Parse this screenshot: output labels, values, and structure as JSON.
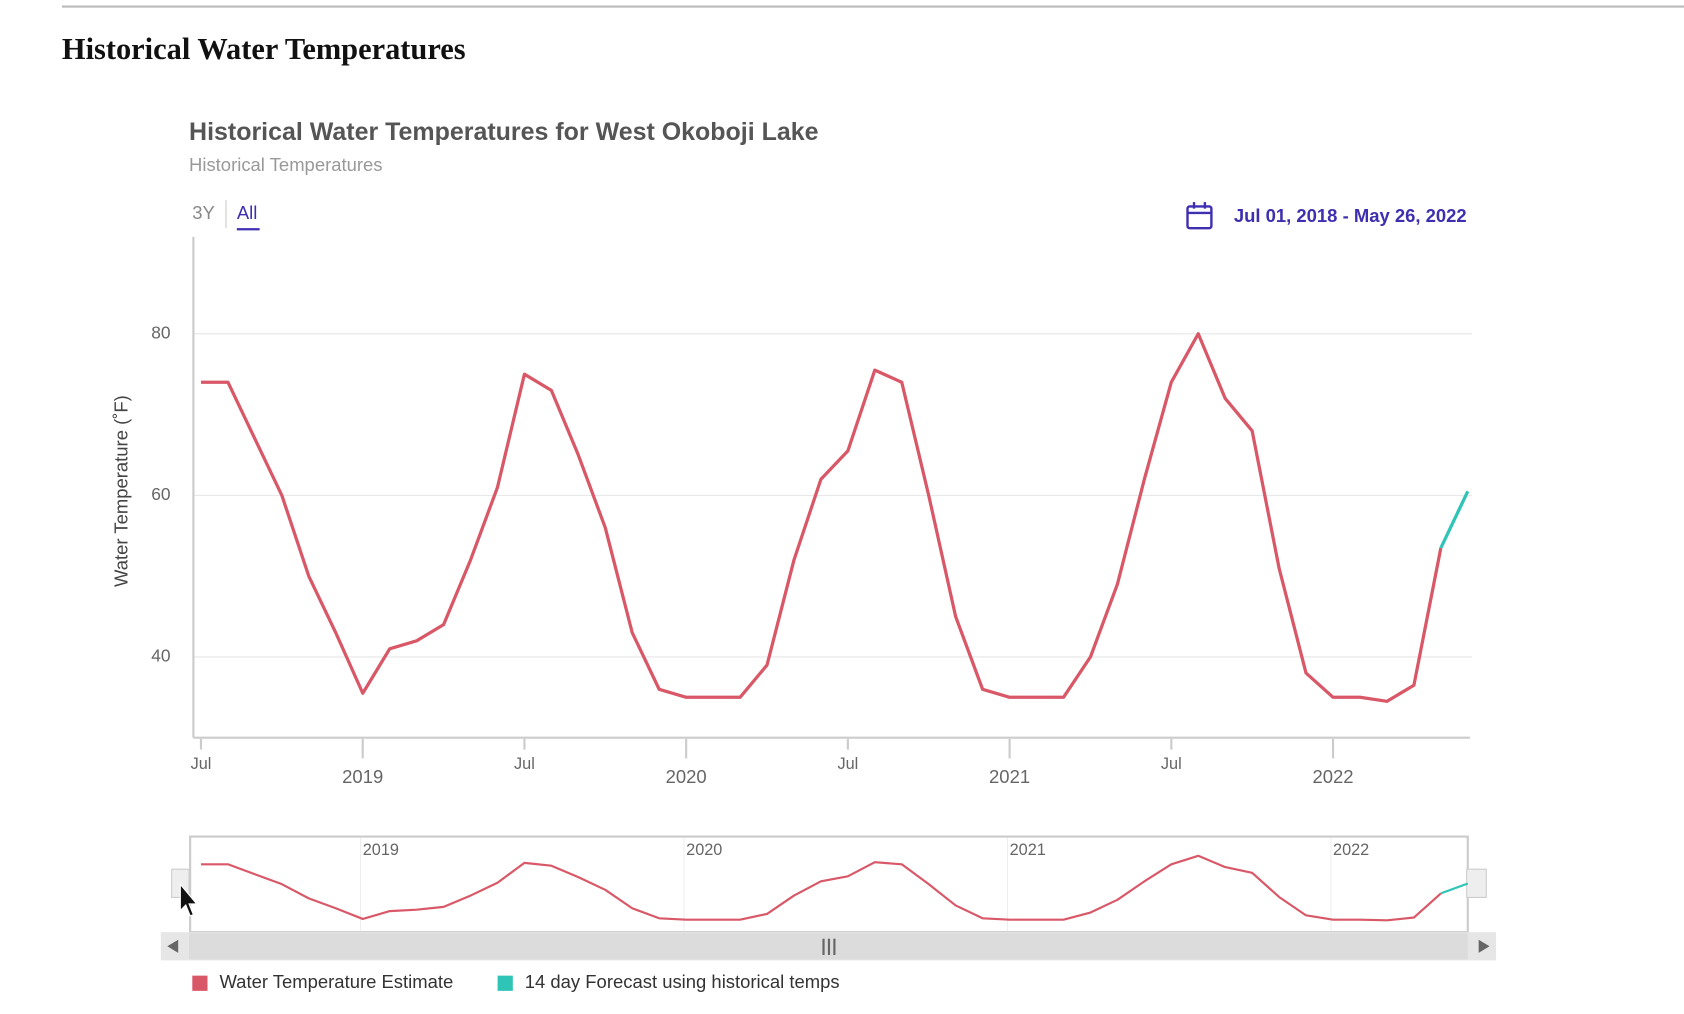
{
  "header": {
    "title": "Historical Water Temperatures"
  },
  "chart_data": {
    "type": "line",
    "title": "Historical Water Temperatures for West Okoboji Lake",
    "subtitle": "Historical Temperatures",
    "range_buttons": [
      "3Y",
      "All"
    ],
    "date_range": "Jul 01, 2018 - May 26, 2022",
    "y_label": "Water Temperature (˚F)",
    "x": [
      "2018-07",
      "2018-08",
      "2018-09",
      "2018-10",
      "2018-11",
      "2018-12",
      "2019-01",
      "2019-02",
      "2019-03",
      "2019-04",
      "2019-05",
      "2019-06",
      "2019-07",
      "2019-08",
      "2019-09",
      "2019-10",
      "2019-11",
      "2019-12",
      "2020-01",
      "2020-02",
      "2020-03",
      "2020-04",
      "2020-05",
      "2020-06",
      "2020-07",
      "2020-08",
      "2020-09",
      "2020-10",
      "2020-11",
      "2020-12",
      "2021-01",
      "2021-02",
      "2021-03",
      "2021-04",
      "2021-05",
      "2021-06",
      "2021-07",
      "2021-08",
      "2021-09",
      "2021-10",
      "2021-11",
      "2021-12",
      "2022-01",
      "2022-02",
      "2022-03",
      "2022-04",
      "2022-05",
      "2022-06"
    ],
    "series": [
      {
        "name": "Water Temperature Estimate",
        "color": "#d95868",
        "values": [
          74,
          74,
          67,
          60,
          50,
          43,
          35.5,
          41,
          42,
          44,
          52,
          61,
          75,
          73,
          65,
          56,
          43,
          36,
          35,
          35,
          35,
          39,
          52,
          62,
          65.5,
          75.5,
          74,
          60,
          45,
          36,
          35,
          35,
          35,
          40,
          49,
          62,
          74,
          80,
          72,
          68,
          51,
          38,
          35,
          35,
          34.5,
          36.5,
          53.5,
          null
        ]
      },
      {
        "name": "14 day Forecast using historical temps",
        "color": "#2ec4b6",
        "values": [
          null,
          null,
          null,
          null,
          null,
          null,
          null,
          null,
          null,
          null,
          null,
          null,
          null,
          null,
          null,
          null,
          null,
          null,
          null,
          null,
          null,
          null,
          null,
          null,
          null,
          null,
          null,
          null,
          null,
          null,
          null,
          null,
          null,
          null,
          null,
          null,
          null,
          null,
          null,
          null,
          null,
          null,
          null,
          null,
          null,
          null,
          53.5,
          60.5
        ]
      }
    ],
    "xlim": [
      "2018-07",
      "2022-06"
    ],
    "xticks": [
      {
        "value": "2018-07",
        "label": "Jul"
      },
      {
        "value": "2019-01",
        "label": "2019"
      },
      {
        "value": "2019-07",
        "label": "Jul"
      },
      {
        "value": "2020-01",
        "label": "2020"
      },
      {
        "value": "2020-07",
        "label": "Jul"
      },
      {
        "value": "2021-01",
        "label": "2021"
      },
      {
        "value": "2021-07",
        "label": "Jul"
      },
      {
        "value": "2022-01",
        "label": "2022"
      }
    ],
    "ylim": [
      30,
      92
    ],
    "yticks": [
      40,
      60,
      80
    ],
    "grid": true
  }
}
